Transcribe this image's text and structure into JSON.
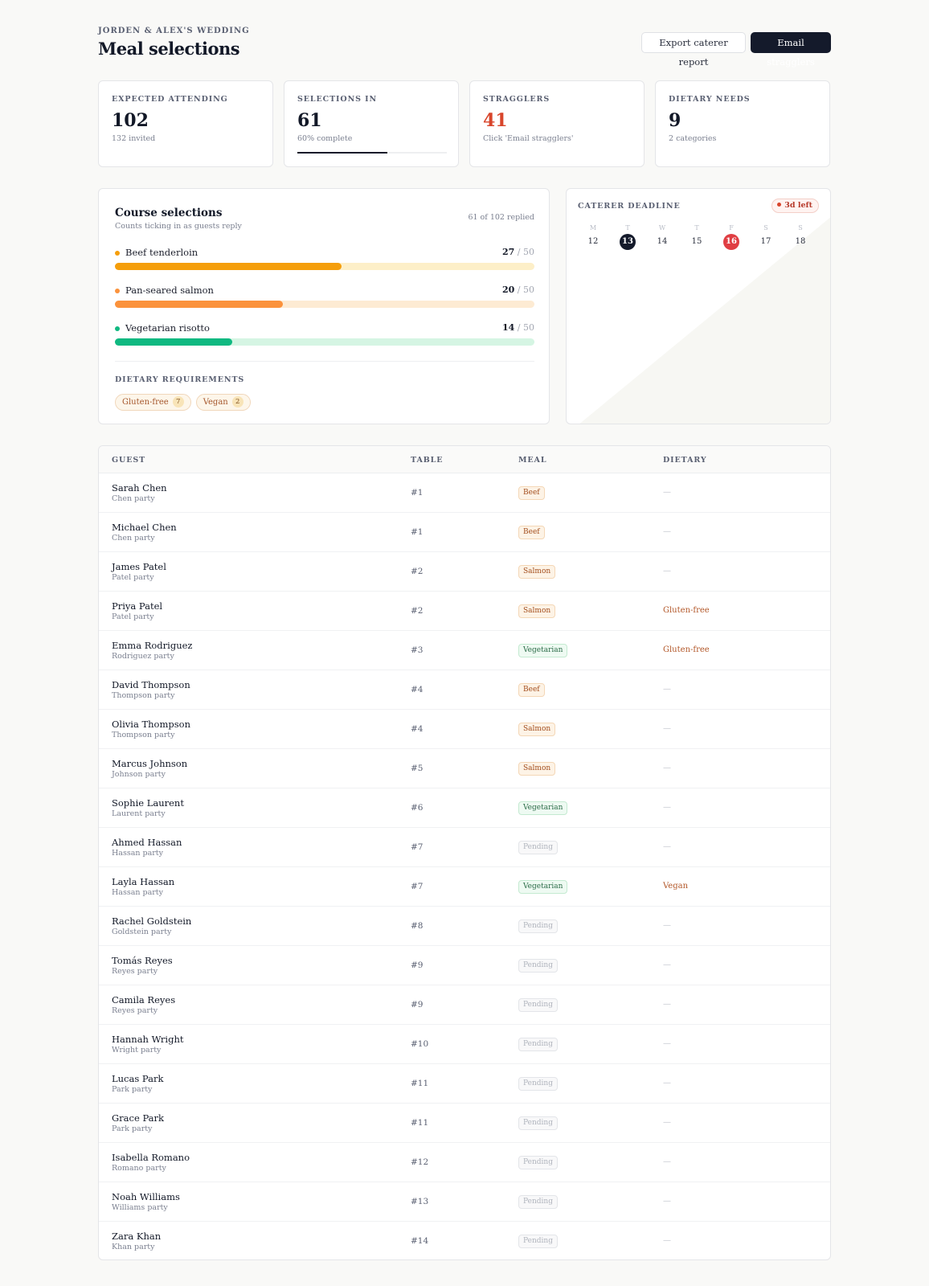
{
  "header": {
    "eyebrow": "JORDEN & ALEX'S WEDDING",
    "title": "Meal selections",
    "export_label": "Export caterer report",
    "email_label": "Email stragglers"
  },
  "stats": [
    {
      "label": "EXPECTED ATTENDING",
      "value": "102",
      "sub": "132 invited"
    },
    {
      "label": "SELECTIONS IN",
      "value": "61",
      "sub": "60% complete",
      "progress": 0.6
    },
    {
      "label": "STRAGGLERS",
      "value": "41",
      "sub": "Click 'Email stragglers'"
    },
    {
      "label": "DIETARY NEEDS",
      "value": "9",
      "sub": "2 categories"
    }
  ],
  "course": {
    "title": "Course selections",
    "subtitle": "Counts ticking in as guests reply",
    "replied": "61 of 102 replied",
    "items": [
      {
        "name": "Beef tenderloin",
        "count": "27",
        "max": "/ 50",
        "fraction": 0.54
      },
      {
        "name": "Pan-seared salmon",
        "count": "20",
        "max": "/ 50",
        "fraction": 0.4
      },
      {
        "name": "Vegetarian risotto",
        "count": "14",
        "max": "/ 50",
        "fraction": 0.28
      }
    ],
    "colors": {
      "beef": "#f59e0b",
      "beef_track": "#fdefc8",
      "salmon": "#fb923c",
      "salmon_track": "#fdebd3",
      "veg": "#10b981",
      "veg_track": "#d5f5e3"
    },
    "dietary_title": "DIETARY REQUIREMENTS",
    "dietary": [
      {
        "label": "Gluten-free",
        "count": "7"
      },
      {
        "label": "Vegan",
        "count": "2"
      }
    ]
  },
  "deadline": {
    "title": "CATERER DEADLINE",
    "badge": "3d left",
    "day_heads": [
      "M",
      "T",
      "W",
      "T",
      "F",
      "S",
      "S"
    ],
    "days": [
      "12",
      "13",
      "14",
      "15",
      "16",
      "17",
      "18"
    ],
    "today_index": 1,
    "deadline_index": 4,
    "colors": {
      "today": "#141a2b",
      "deadline": "#e03e43"
    }
  },
  "table": {
    "headers": {
      "guest": "GUEST",
      "table": "TABLE",
      "meal": "MEAL",
      "dietary": "DIETARY"
    },
    "rows": [
      {
        "name": "Sarah Chen",
        "party": "Chen party",
        "table": "#1",
        "meal": "Beef",
        "meal_type": "beef",
        "dietary": "—"
      },
      {
        "name": "Michael Chen",
        "party": "Chen party",
        "table": "#1",
        "meal": "Beef",
        "meal_type": "beef",
        "dietary": "—"
      },
      {
        "name": "James Patel",
        "party": "Patel party",
        "table": "#2",
        "meal": "Salmon",
        "meal_type": "salmon",
        "dietary": "—"
      },
      {
        "name": "Priya Patel",
        "party": "Patel party",
        "table": "#2",
        "meal": "Salmon",
        "meal_type": "salmon",
        "dietary": "Gluten-free"
      },
      {
        "name": "Emma Rodriguez",
        "party": "Rodriguez party",
        "table": "#3",
        "meal": "Vegetarian",
        "meal_type": "veg",
        "dietary": "Gluten-free"
      },
      {
        "name": "David Thompson",
        "party": "Thompson party",
        "table": "#4",
        "meal": "Beef",
        "meal_type": "beef",
        "dietary": "—"
      },
      {
        "name": "Olivia Thompson",
        "party": "Thompson party",
        "table": "#4",
        "meal": "Salmon",
        "meal_type": "salmon",
        "dietary": "—"
      },
      {
        "name": "Marcus Johnson",
        "party": "Johnson party",
        "table": "#5",
        "meal": "Salmon",
        "meal_type": "salmon",
        "dietary": "—"
      },
      {
        "name": "Sophie Laurent",
        "party": "Laurent party",
        "table": "#6",
        "meal": "Vegetarian",
        "meal_type": "veg",
        "dietary": "—"
      },
      {
        "name": "Ahmed Hassan",
        "party": "Hassan party",
        "table": "#7",
        "meal": "Pending",
        "meal_type": "pending",
        "dietary": "—"
      },
      {
        "name": "Layla Hassan",
        "party": "Hassan party",
        "table": "#7",
        "meal": "Vegetarian",
        "meal_type": "veg",
        "dietary": "Vegan"
      },
      {
        "name": "Rachel Goldstein",
        "party": "Goldstein party",
        "table": "#8",
        "meal": "Pending",
        "meal_type": "pending",
        "dietary": "—"
      },
      {
        "name": "Tomás Reyes",
        "party": "Reyes party",
        "table": "#9",
        "meal": "Pending",
        "meal_type": "pending",
        "dietary": "—"
      },
      {
        "name": "Camila Reyes",
        "party": "Reyes party",
        "table": "#9",
        "meal": "Pending",
        "meal_type": "pending",
        "dietary": "—"
      },
      {
        "name": "Hannah Wright",
        "party": "Wright party",
        "table": "#10",
        "meal": "Pending",
        "meal_type": "pending",
        "dietary": "—"
      },
      {
        "name": "Lucas Park",
        "party": "Park party",
        "table": "#11",
        "meal": "Pending",
        "meal_type": "pending",
        "dietary": "—"
      },
      {
        "name": "Grace Park",
        "party": "Park party",
        "table": "#11",
        "meal": "Pending",
        "meal_type": "pending",
        "dietary": "—"
      },
      {
        "name": "Isabella Romano",
        "party": "Romano party",
        "table": "#12",
        "meal": "Pending",
        "meal_type": "pending",
        "dietary": "—"
      },
      {
        "name": "Noah Williams",
        "party": "Williams party",
        "table": "#13",
        "meal": "Pending",
        "meal_type": "pending",
        "dietary": "—"
      },
      {
        "name": "Zara Khan",
        "party": "Khan party",
        "table": "#14",
        "meal": "Pending",
        "meal_type": "pending",
        "dietary": "—"
      }
    ]
  }
}
